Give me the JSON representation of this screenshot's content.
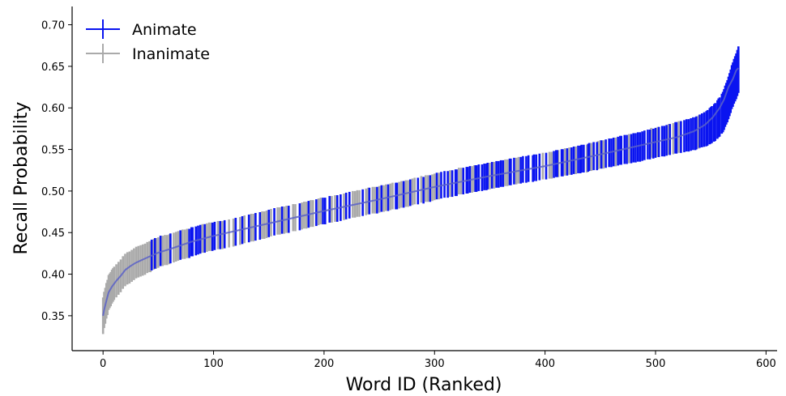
{
  "chart_data": {
    "type": "line",
    "xlabel": "Word ID (Ranked)",
    "ylabel": "Recall Probability",
    "xlim": [
      -28,
      610
    ],
    "ylim": [
      0.308,
      0.722
    ],
    "xticks": [
      0,
      100,
      200,
      300,
      400,
      500,
      600
    ],
    "yticks": [
      0.35,
      0.4,
      0.45,
      0.5,
      0.55,
      0.6,
      0.65,
      0.7
    ],
    "xtick_labels": [
      "0",
      "100",
      "200",
      "300",
      "400",
      "500",
      "600"
    ],
    "ytick_labels": [
      "0.35",
      "0.40",
      "0.45",
      "0.50",
      "0.55",
      "0.60",
      "0.65",
      "0.70"
    ],
    "grid": false,
    "legend_position": "top-left",
    "n_points": 576,
    "mean_curve": {
      "x": [
        0,
        1,
        3,
        5,
        8,
        12,
        16,
        20,
        25,
        30,
        40,
        50,
        60,
        80,
        100,
        150,
        200,
        250,
        300,
        350,
        400,
        450,
        500,
        520,
        535,
        545,
        552,
        558,
        562,
        566,
        570,
        573,
        575
      ],
      "y": [
        0.35,
        0.357,
        0.368,
        0.378,
        0.385,
        0.392,
        0.398,
        0.405,
        0.41,
        0.414,
        0.42,
        0.426,
        0.43,
        0.439,
        0.446,
        0.461,
        0.476,
        0.49,
        0.505,
        0.518,
        0.53,
        0.544,
        0.559,
        0.565,
        0.572,
        0.58,
        0.589,
        0.6,
        0.61,
        0.625,
        0.635,
        0.645,
        0.648
      ]
    },
    "error_half_width": {
      "x": [
        0,
        10,
        30,
        60,
        100,
        200,
        300,
        400,
        500,
        540,
        560,
        575
      ],
      "y": [
        0.022,
        0.02,
        0.019,
        0.018,
        0.017,
        0.016,
        0.016,
        0.016,
        0.018,
        0.02,
        0.024,
        0.028
      ]
    },
    "series": [
      {
        "name": "Animate",
        "color": "#0a14f0",
        "x": [
          44,
          47,
          52,
          61,
          70,
          78,
          80,
          81,
          84,
          86,
          88,
          92,
          99,
          101,
          106,
          110,
          120,
          126,
          132,
          138,
          142,
          150,
          155,
          162,
          168,
          178,
          186,
          193,
          199,
          201,
          205,
          212,
          215,
          220,
          223,
          235,
          241,
          248,
          252,
          258,
          265,
          266,
          272,
          278,
          285,
          290,
          296,
          302,
          306,
          309,
          312,
          316,
          319,
          320,
          326,
          329,
          330,
          332,
          337,
          338,
          340,
          343,
          345,
          347,
          348,
          352,
          356,
          358,
          360,
          362,
          368,
          369,
          372,
          378,
          380,
          383,
          385,
          389,
          390,
          392,
          395,
          401,
          408,
          410,
          411,
          415,
          416,
          420,
          424,
          426,
          430,
          432,
          433,
          435,
          439,
          440,
          444,
          447,
          451,
          455,
          458,
          460,
          462,
          466,
          468,
          469,
          472,
          474,
          478,
          480,
          482,
          484,
          486,
          488,
          490,
          493,
          495,
          498,
          500,
          503,
          506,
          508,
          510,
          513,
          518,
          519,
          523,
          526,
          528,
          530,
          532,
          534,
          536,
          537,
          540,
          542,
          544,
          546,
          547,
          549,
          550,
          551,
          553,
          554,
          556,
          557,
          558,
          560,
          561,
          562,
          563,
          564,
          565,
          566,
          567,
          568,
          569,
          570,
          571,
          572,
          573,
          574,
          575
        ],
        "y": [
          0.423,
          0.425,
          0.428,
          0.431,
          0.435,
          0.437,
          0.439,
          0.439,
          0.44,
          0.441,
          0.442,
          0.443,
          0.445,
          0.446,
          0.447,
          0.448,
          0.451,
          0.453,
          0.455,
          0.457,
          0.458,
          0.461,
          0.463,
          0.465,
          0.466,
          0.469,
          0.472,
          0.474,
          0.476,
          0.476,
          0.478,
          0.479,
          0.48,
          0.482,
          0.483,
          0.486,
          0.488,
          0.489,
          0.491,
          0.492,
          0.494,
          0.494,
          0.496,
          0.498,
          0.5,
          0.501,
          0.503,
          0.506,
          0.507,
          0.508,
          0.508,
          0.509,
          0.51,
          0.51,
          0.512,
          0.513,
          0.513,
          0.514,
          0.515,
          0.515,
          0.516,
          0.516,
          0.517,
          0.517,
          0.518,
          0.519,
          0.52,
          0.52,
          0.521,
          0.521,
          0.523,
          0.523,
          0.524,
          0.525,
          0.526,
          0.526,
          0.527,
          0.527,
          0.528,
          0.528,
          0.529,
          0.53,
          0.532,
          0.533,
          0.533,
          0.534,
          0.534,
          0.535,
          0.536,
          0.537,
          0.538,
          0.538,
          0.539,
          0.539,
          0.54,
          0.541,
          0.542,
          0.542,
          0.544,
          0.545,
          0.546,
          0.546,
          0.547,
          0.548,
          0.549,
          0.549,
          0.55,
          0.55,
          0.551,
          0.552,
          0.552,
          0.553,
          0.553,
          0.554,
          0.555,
          0.556,
          0.556,
          0.557,
          0.558,
          0.559,
          0.56,
          0.56,
          0.561,
          0.562,
          0.564,
          0.564,
          0.565,
          0.566,
          0.567,
          0.567,
          0.568,
          0.569,
          0.569,
          0.57,
          0.572,
          0.573,
          0.574,
          0.575,
          0.576,
          0.578,
          0.579,
          0.58,
          0.582,
          0.583,
          0.586,
          0.588,
          0.589,
          0.593,
          0.595,
          0.598,
          0.602,
          0.605,
          0.608,
          0.612,
          0.616,
          0.62,
          0.625,
          0.628,
          0.632,
          0.635,
          0.638,
          0.642,
          0.646
        ]
      },
      {
        "name": "Inanimate",
        "color": "#aaaaaa",
        "x": [
          0,
          1,
          2,
          3,
          4,
          5,
          6,
          7,
          8,
          9,
          10,
          12,
          14,
          16,
          18,
          20,
          22,
          24,
          26,
          28,
          30,
          32,
          34,
          36,
          38,
          40,
          42,
          43,
          46,
          48,
          50,
          54,
          56,
          58,
          60,
          64,
          66,
          68,
          72,
          74,
          76,
          90,
          94,
          96,
          98,
          104,
          108,
          114,
          118,
          124,
          128,
          134,
          136,
          144,
          146,
          148,
          152,
          158,
          160,
          164,
          166,
          172,
          174,
          180,
          182,
          184,
          188,
          190,
          195,
          197,
          207,
          210,
          218,
          226,
          228,
          230,
          232,
          238,
          240,
          244,
          246,
          250,
          254,
          256,
          260,
          262,
          268,
          270,
          274,
          276,
          280,
          282,
          288,
          292,
          294,
          298,
          300,
          304,
          314,
          322,
          324,
          334,
          336,
          350,
          354,
          364,
          366,
          374,
          376,
          398,
          404,
          406,
          412,
          418,
          422,
          428,
          438,
          442,
          448,
          450,
          453,
          464,
          476,
          496,
          502,
          512,
          516,
          521,
          539
        ],
        "y": [
          0.35,
          0.357,
          0.362,
          0.368,
          0.372,
          0.378,
          0.38,
          0.382,
          0.385,
          0.387,
          0.389,
          0.392,
          0.395,
          0.398,
          0.402,
          0.405,
          0.407,
          0.408,
          0.41,
          0.412,
          0.414,
          0.415,
          0.416,
          0.417,
          0.418,
          0.42,
          0.421,
          0.421,
          0.424,
          0.425,
          0.426,
          0.428,
          0.429,
          0.429,
          0.43,
          0.432,
          0.433,
          0.434,
          0.436,
          0.436,
          0.437,
          0.443,
          0.444,
          0.445,
          0.445,
          0.447,
          0.447,
          0.449,
          0.45,
          0.452,
          0.454,
          0.456,
          0.456,
          0.459,
          0.459,
          0.46,
          0.462,
          0.464,
          0.464,
          0.465,
          0.466,
          0.468,
          0.468,
          0.47,
          0.471,
          0.471,
          0.473,
          0.473,
          0.475,
          0.476,
          0.478,
          0.479,
          0.481,
          0.484,
          0.484,
          0.485,
          0.485,
          0.487,
          0.488,
          0.489,
          0.489,
          0.49,
          0.491,
          0.492,
          0.493,
          0.494,
          0.495,
          0.496,
          0.497,
          0.497,
          0.499,
          0.5,
          0.502,
          0.503,
          0.503,
          0.504,
          0.505,
          0.506,
          0.509,
          0.512,
          0.512,
          0.514,
          0.515,
          0.518,
          0.519,
          0.522,
          0.522,
          0.524,
          0.525,
          0.53,
          0.531,
          0.531,
          0.533,
          0.535,
          0.536,
          0.537,
          0.539,
          0.541,
          0.543,
          0.544,
          0.544,
          0.547,
          0.551,
          0.558,
          0.559,
          0.562,
          0.563,
          0.565,
          0.571
        ]
      }
    ]
  }
}
